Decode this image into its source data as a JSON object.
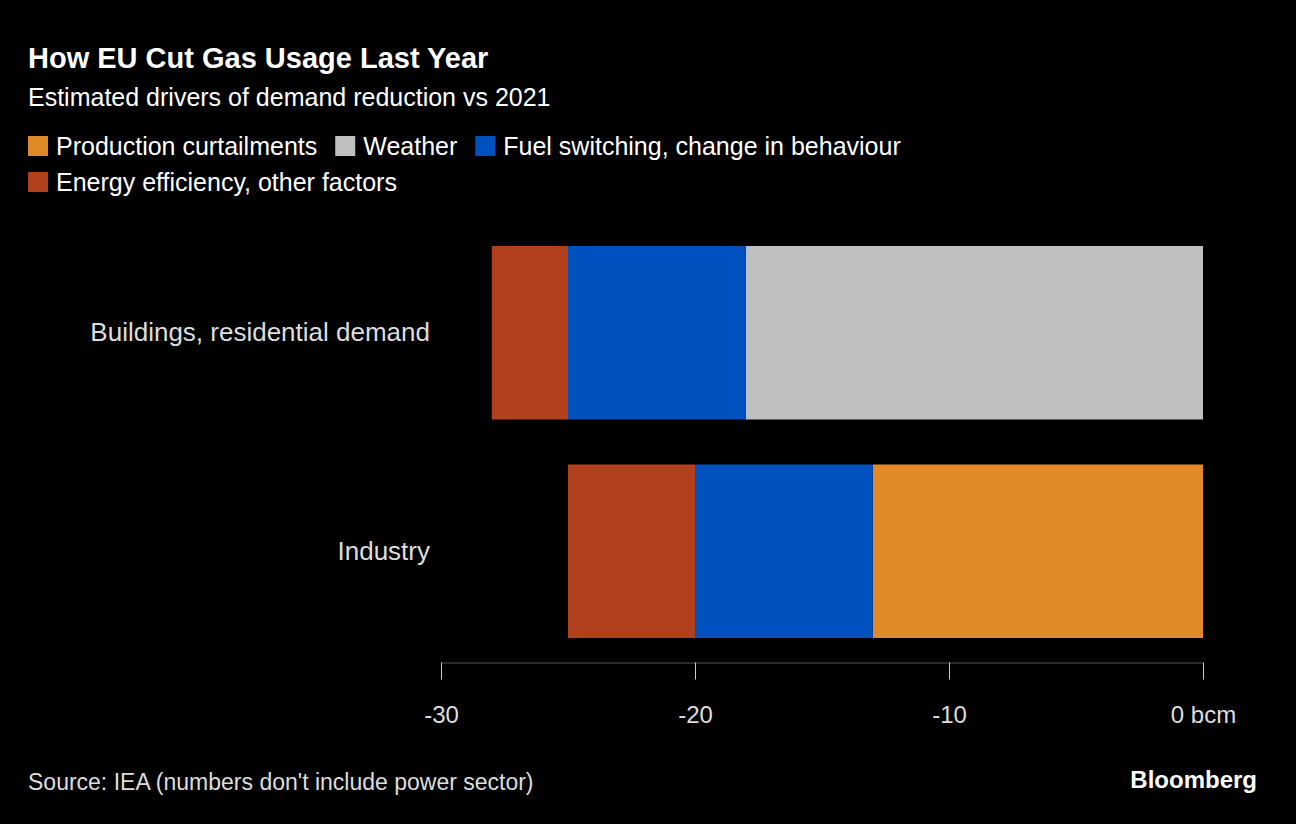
{
  "chart_data": {
    "type": "bar",
    "orientation": "horizontal",
    "stacked": true,
    "title": "How EU Cut Gas Usage Last Year",
    "subtitle": "Estimated drivers of demand reduction vs 2021",
    "categories": [
      "Buildings, residential demand",
      "Industry"
    ],
    "series": [
      {
        "name": "Production curtailments",
        "color": "#e08a27",
        "values": [
          0,
          -13
        ]
      },
      {
        "name": "Weather",
        "color": "#c0c0c0",
        "values": [
          -18,
          0
        ]
      },
      {
        "name": "Fuel switching, change in behaviour",
        "color": "#0050bf",
        "values": [
          -7,
          -7
        ]
      },
      {
        "name": "Energy efficiency, other factors",
        "color": "#b1401d",
        "values": [
          -3,
          -5
        ]
      }
    ],
    "xlim": [
      -30,
      0
    ],
    "xticks": [
      -30,
      -20,
      -10,
      {
        "value": 0,
        "label": "0 bcm"
      }
    ],
    "grid": false,
    "legend": "top",
    "source": "Source: IEA (numbers don't include power sector)",
    "credit": "Bloomberg"
  }
}
